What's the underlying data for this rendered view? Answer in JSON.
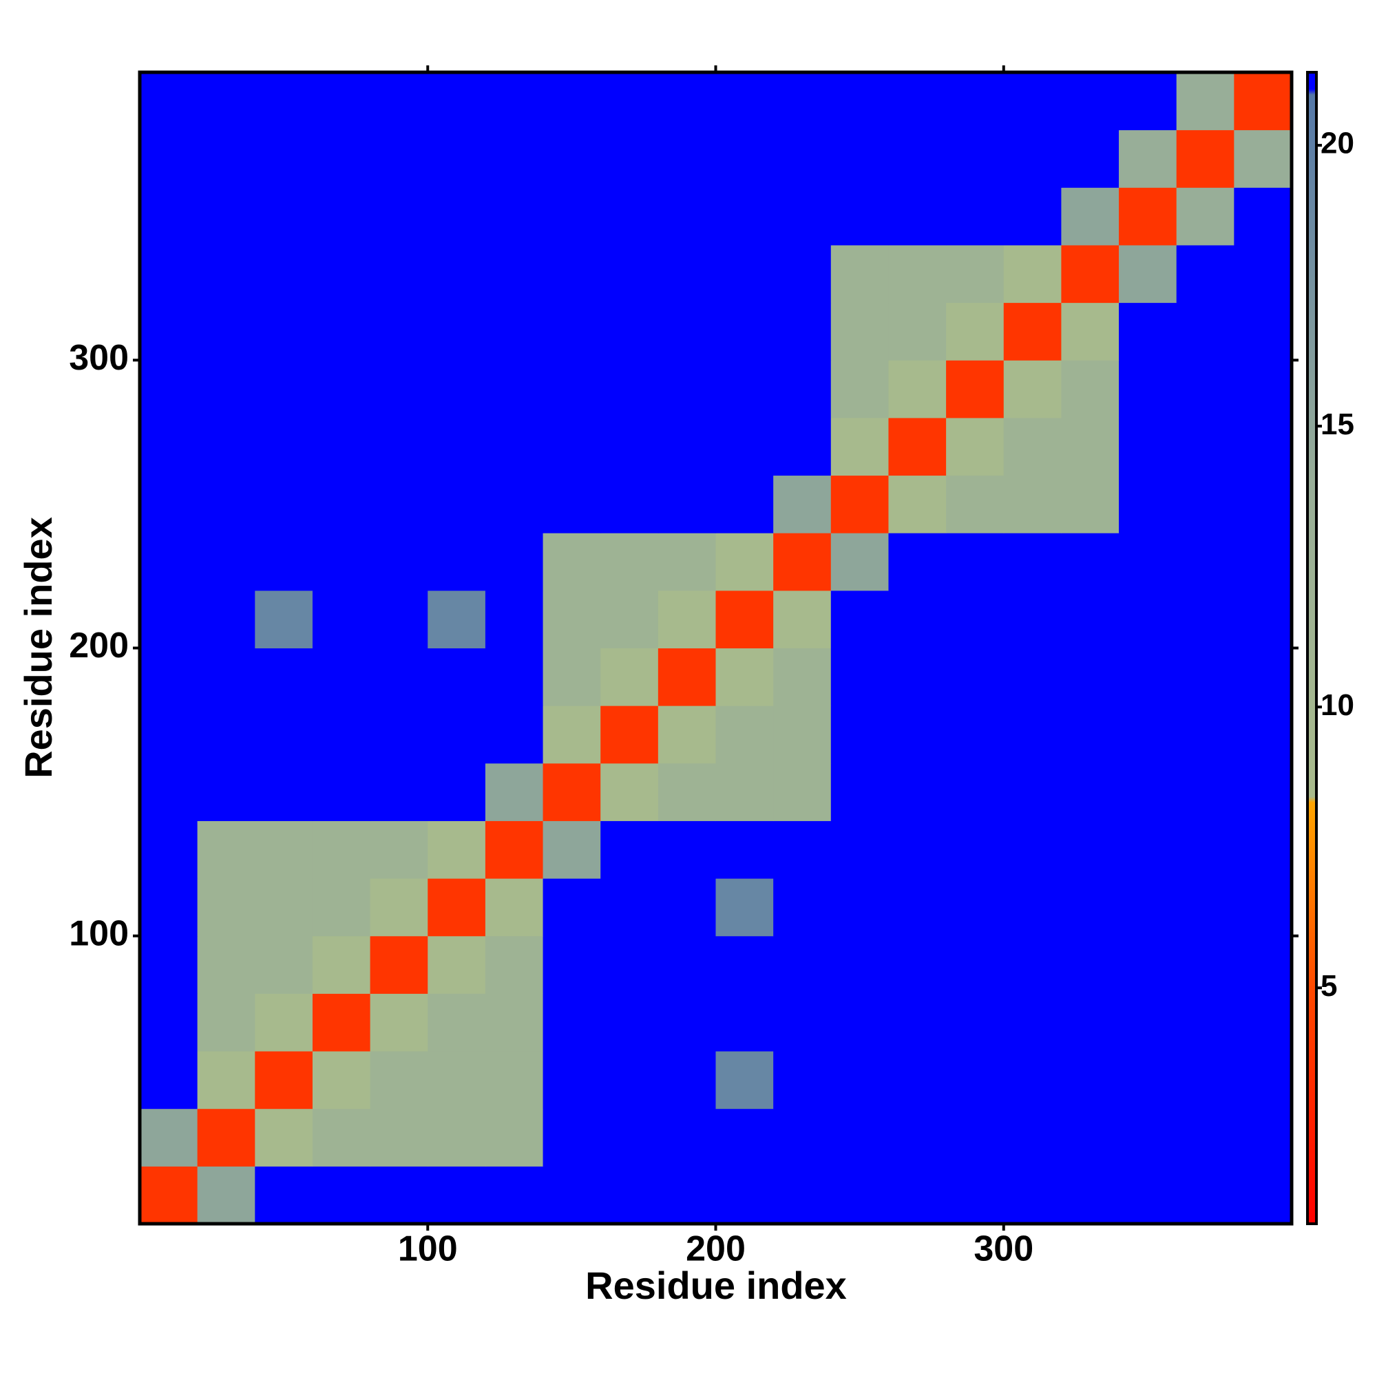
{
  "chart_data": {
    "type": "heatmap",
    "x_label": "Residue index",
    "y_label": "Residue index",
    "bins": [
      0,
      20,
      40,
      60,
      80,
      100,
      120,
      140,
      160,
      180,
      200,
      220,
      240,
      260,
      280,
      300,
      320,
      340,
      360,
      380,
      400
    ],
    "xlim": [
      0,
      400
    ],
    "ylim": [
      0,
      400
    ],
    "xticks": [
      100,
      200,
      300
    ],
    "yticks": [
      100,
      200,
      300
    ],
    "values": [
      [
        3.8,
        15,
        21,
        21,
        21,
        21,
        21,
        21,
        21,
        21,
        21,
        21,
        21,
        21,
        21,
        21,
        21,
        21,
        21,
        21
      ],
      [
        15,
        3.8,
        9,
        12,
        12,
        12,
        12,
        21,
        21,
        21,
        21,
        21,
        21,
        21,
        21,
        21,
        21,
        21,
        21,
        21
      ],
      [
        21,
        9,
        3.8,
        9,
        12,
        12,
        12,
        21,
        21,
        21,
        19,
        21,
        21,
        21,
        21,
        21,
        21,
        21,
        21,
        21
      ],
      [
        21,
        12,
        9,
        3.8,
        9,
        12,
        12,
        21,
        21,
        21,
        21,
        21,
        21,
        21,
        21,
        21,
        21,
        21,
        21,
        21
      ],
      [
        21,
        12,
        12,
        9,
        3.8,
        9,
        12,
        21,
        21,
        21,
        21,
        21,
        21,
        21,
        21,
        21,
        21,
        21,
        21,
        21
      ],
      [
        21,
        12,
        12,
        12,
        9,
        3.8,
        9,
        21,
        21,
        21,
        19,
        21,
        21,
        21,
        21,
        21,
        21,
        21,
        21,
        21
      ],
      [
        21,
        12,
        12,
        12,
        12,
        9,
        3.8,
        15,
        21,
        21,
        21,
        21,
        21,
        21,
        21,
        21,
        21,
        21,
        21,
        21
      ],
      [
        21,
        21,
        21,
        21,
        21,
        21,
        15,
        3.8,
        9,
        12,
        12,
        12,
        21,
        21,
        21,
        21,
        21,
        21,
        21,
        21
      ],
      [
        21,
        21,
        21,
        21,
        21,
        21,
        21,
        9,
        3.8,
        9,
        12,
        12,
        21,
        21,
        21,
        21,
        21,
        21,
        21,
        21
      ],
      [
        21,
        21,
        21,
        21,
        21,
        21,
        21,
        12,
        9,
        3.8,
        9,
        12,
        21,
        21,
        21,
        21,
        21,
        21,
        21,
        21
      ],
      [
        21,
        21,
        19,
        21,
        21,
        19,
        21,
        12,
        12,
        9,
        3.8,
        9,
        21,
        21,
        21,
        21,
        21,
        21,
        21,
        21
      ],
      [
        21,
        21,
        21,
        21,
        21,
        21,
        21,
        12,
        12,
        12,
        9,
        3.8,
        15,
        21,
        21,
        21,
        21,
        21,
        21,
        21
      ],
      [
        21,
        21,
        21,
        21,
        21,
        21,
        21,
        21,
        21,
        21,
        21,
        15,
        3.8,
        9,
        12,
        12,
        12,
        21,
        21,
        21
      ],
      [
        21,
        21,
        21,
        21,
        21,
        21,
        21,
        21,
        21,
        21,
        21,
        21,
        9,
        3.8,
        9,
        12,
        12,
        21,
        21,
        21
      ],
      [
        21,
        21,
        21,
        21,
        21,
        21,
        21,
        21,
        21,
        21,
        21,
        21,
        12,
        9,
        3.8,
        9,
        12,
        21,
        21,
        21
      ],
      [
        21,
        21,
        21,
        21,
        21,
        21,
        21,
        21,
        21,
        21,
        21,
        21,
        12,
        12,
        9,
        3.8,
        9,
        21,
        21,
        21
      ],
      [
        21,
        21,
        21,
        21,
        21,
        21,
        21,
        21,
        21,
        21,
        21,
        21,
        12,
        12,
        12,
        9,
        3.8,
        15,
        21,
        21
      ],
      [
        21,
        21,
        21,
        21,
        21,
        21,
        21,
        21,
        21,
        21,
        21,
        21,
        21,
        21,
        21,
        21,
        15,
        3.8,
        14,
        21
      ],
      [
        21,
        21,
        21,
        21,
        21,
        21,
        21,
        21,
        21,
        21,
        21,
        21,
        21,
        21,
        21,
        21,
        21,
        14,
        3.8,
        14
      ],
      [
        21,
        21,
        21,
        21,
        21,
        21,
        21,
        21,
        21,
        21,
        21,
        21,
        21,
        21,
        21,
        21,
        21,
        21,
        14,
        3.8
      ]
    ],
    "colorbar": {
      "lim": [
        0.8,
        21.3
      ],
      "ticks": [
        5,
        10,
        15,
        20
      ],
      "colorscale": [
        {
          "value": 0.8,
          "color": "#ff0000"
        },
        {
          "value": 5,
          "color": "#ff4a00"
        },
        {
          "value": 8.3,
          "color": "#ffa500"
        },
        {
          "value": 8.4,
          "color": "#a9bb8c"
        },
        {
          "value": 14,
          "color": "#98ae98"
        },
        {
          "value": 20.9,
          "color": "#5578a8"
        },
        {
          "value": 21,
          "color": "#0000ff"
        },
        {
          "value": 21.3,
          "color": "#0000ff"
        }
      ]
    }
  }
}
